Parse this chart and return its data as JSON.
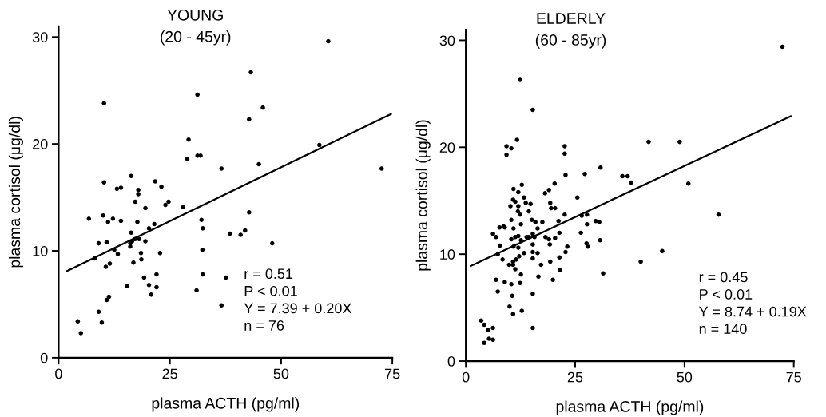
{
  "chart_data": [
    {
      "type": "scatter",
      "title": "YOUNG",
      "subtitle": "(20 - 45yr)",
      "xlabel": "plasma ACTH (pg/ml)",
      "ylabel": "plasma cortisol (μg/dl)",
      "xlim": [
        0,
        75
      ],
      "ylim": [
        0,
        31
      ],
      "xticks": [
        0,
        25,
        50,
        75
      ],
      "yticks": [
        0,
        10,
        20,
        30
      ],
      "grid": false,
      "legend": false,
      "annotations": [
        "r = 0.51",
        "P < 0.01",
        "Y = 7.39 + 0.20X",
        "n = 76"
      ],
      "series": [
        {
          "marker": "circle",
          "color": "#000000",
          "x": [
            10.2,
            31.2,
            29.2,
            28.9,
            31.2,
            31.9,
            36.6,
            16.3,
            10.2,
            13.1,
            14.0,
            21.7,
            23.1,
            17.9,
            17.9,
            17.2,
            19.5,
            24.0,
            24.7,
            28.0,
            6.8,
            10.0,
            11.1,
            12.2,
            14.0,
            17.7,
            32.1,
            32.4,
            16.3,
            20.3,
            21.5,
            9.0,
            10.8,
            16.1,
            16.5,
            17.2,
            18.1,
            19.5,
            16.1,
            12.5,
            13.3,
            8.1,
            18.5,
            22.8,
            32.3,
            18.6,
            16.8,
            10.6,
            11.5,
            19.2,
            22.0,
            32.4,
            15.4,
            20.3,
            20.8,
            22.0,
            31.0,
            36.6,
            10.8,
            11.3,
            9.0,
            9.7,
            4.3,
            5.0,
            60.6,
            43.2,
            45.9,
            42.8,
            58.6,
            45.0,
            72.6,
            42.8,
            38.5,
            40.9,
            41.9,
            48.0,
            37.6
          ],
          "values": [
            23.8,
            24.6,
            20.4,
            18.6,
            18.9,
            18.9,
            17.7,
            17.0,
            16.4,
            15.8,
            15.9,
            16.5,
            16.0,
            15.7,
            15.3,
            14.6,
            14.0,
            14.3,
            14.6,
            14.1,
            13.0,
            13.3,
            12.7,
            13.0,
            12.8,
            12.7,
            12.9,
            12.1,
            11.7,
            12.1,
            12.5,
            10.7,
            10.8,
            10.7,
            10.9,
            11.1,
            11.1,
            10.9,
            10.4,
            10.1,
            9.7,
            9.3,
            9.8,
            9.8,
            10.1,
            9.2,
            8.9,
            8.5,
            8.8,
            7.5,
            7.8,
            7.8,
            6.7,
            6.8,
            5.9,
            6.6,
            6.3,
            4.9,
            5.4,
            5.7,
            4.3,
            3.3,
            3.4,
            2.3,
            29.6,
            26.7,
            23.4,
            22.3,
            19.9,
            18.1,
            17.7,
            13.6,
            11.6,
            11.5,
            11.9,
            10.7,
            7.5
          ]
        },
        {
          "type": "line",
          "color": "#000000",
          "x": [
            1.8,
            74.7
          ],
          "values": [
            8.1,
            22.8
          ]
        }
      ]
    },
    {
      "type": "scatter",
      "title": "ELDERLY",
      "subtitle": "(60 - 85yr)",
      "xlabel": "plasma ACTH (pg/ml)",
      "ylabel": "plasma cortisol (μg/dl)",
      "xlim": [
        0,
        75
      ],
      "ylim": [
        0,
        31
      ],
      "xticks": [
        0,
        25,
        50,
        75
      ],
      "yticks": [
        0,
        10,
        20,
        30
      ],
      "grid": false,
      "legend": false,
      "annotations": [
        "r = 0.45",
        "P < 0.01",
        "Y = 8.74 + 0.19X",
        "n = 140"
      ],
      "series": [
        {
          "marker": "circle",
          "color": "#000000",
          "x": [
            12.4,
            15.3,
            11.7,
            9.3,
            10.4,
            9.3,
            22.6,
            22.6,
            22.8,
            27.2,
            20.3,
            18.1,
            19.0,
            10.9,
            12.8,
            12.0,
            10.8,
            11.3,
            13.3,
            10.2,
            12.0,
            13.7,
            14.8,
            11.9,
            12.4,
            14.4,
            19.3,
            19.5,
            20.4,
            25.5,
            22.6,
            6.2,
            6.9,
            7.7,
            8.6,
            8.9,
            10.4,
            10.9,
            12.6,
            15.1,
            15.9,
            17.5,
            21.2,
            26.5,
            27.7,
            27.7,
            7.8,
            10.4,
            11.3,
            12.0,
            12.6,
            13.9,
            14.4,
            15.3,
            15.7,
            16.4,
            18.2,
            19.0,
            20.4,
            21.4,
            26.3,
            10.9,
            12.0,
            15.3,
            19.2,
            23.2,
            22.8,
            27.6,
            27.9,
            7.3,
            8.4,
            9.9,
            10.8,
            11.5,
            12.2,
            13.3,
            15.3,
            15.3,
            16.4,
            17.2,
            19.3,
            21.4,
            10.8,
            11.3,
            12.6,
            16.6,
            21.5,
            6.9,
            8.9,
            10.4,
            12.4,
            19.9,
            7.3,
            10.6,
            15.3,
            10.0,
            10.8,
            12.8,
            15.3,
            3.5,
            4.2,
            5.1,
            6.2,
            4.2,
            5.3,
            6.2,
            72.4,
            41.8,
            48.9,
            30.8,
            35.8,
            37.0,
            37.8,
            50.9,
            29.7,
            30.5,
            57.8,
            30.7,
            44.9,
            40.0,
            31.4
          ],
          "values": [
            26.3,
            23.5,
            20.7,
            20.1,
            19.9,
            19.3,
            20.1,
            19.4,
            17.4,
            17.5,
            16.6,
            15.7,
            16.0,
            16.1,
            16.5,
            15.8,
            15.1,
            14.9,
            15.3,
            14.5,
            14.5,
            14.8,
            14.7,
            14.0,
            13.7,
            14.0,
            14.8,
            14.3,
            14.3,
            15.3,
            13.7,
            11.9,
            11.6,
            12.5,
            12.6,
            12.5,
            13.2,
            12.4,
            12.8,
            13.2,
            13.0,
            13.0,
            13.1,
            13.6,
            13.7,
            12.8,
            10.8,
            11.4,
            11.6,
            11.7,
            11.3,
            11.6,
            11.6,
            11.9,
            11.6,
            12.4,
            11.6,
            11.4,
            11.5,
            12.0,
            12.0,
            10.7,
            10.6,
            10.9,
            10.9,
            10.7,
            10.2,
            11.0,
            10.7,
            10.0,
            9.5,
            9.0,
            9.3,
            9.5,
            9.8,
            10.1,
            10.2,
            9.6,
            10.1,
            9.0,
            9.3,
            9.7,
            9.0,
            8.6,
            8.1,
            7.9,
            8.5,
            7.6,
            7.4,
            7.2,
            7.3,
            7.6,
            6.5,
            6.1,
            6.3,
            5.1,
            4.4,
            4.7,
            3.1,
            3.8,
            3.4,
            2.9,
            3.1,
            1.7,
            2.1,
            2.0,
            29.4,
            20.5,
            20.5,
            18.1,
            17.3,
            17.3,
            16.7,
            16.6,
            13.1,
            13.0,
            13.7,
            11.3,
            10.3,
            9.3,
            8.2
          ]
        },
        {
          "type": "line",
          "color": "#000000",
          "x": [
            1.1,
            74.3
          ],
          "values": [
            8.9,
            22.9
          ]
        }
      ]
    }
  ]
}
